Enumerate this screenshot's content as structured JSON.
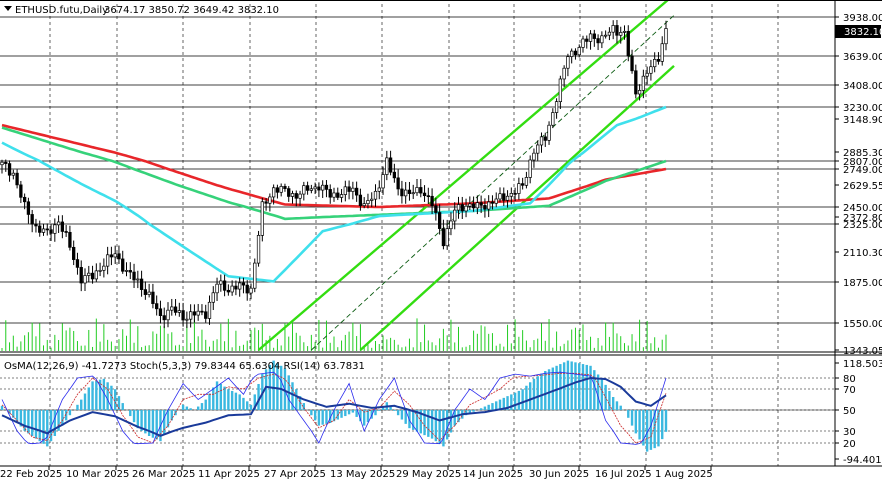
{
  "header": {
    "instrument": "ETHUSD.futu,Daily",
    "ohlc": "3674.17 3850.72 3649.42 3832.10"
  },
  "indicator_header": "OsMA(12,26,9) -41.7273  Stoch(5,3,3) 79.8344 65.6304  RSI(14) 63.7831",
  "current_price_label": "3832.10",
  "colors": {
    "candle": "#000000",
    "ma_red": "#e8262a",
    "ma_green": "#36d27a",
    "ma_cyan": "#3fe0ec",
    "channel": "#33dd11",
    "volume": "#22cc22",
    "osma": "#3ab8e0",
    "rsi": "#1a3a9a",
    "stoch_main": "#2a2aee",
    "stoch_signal": "#cc2a2a"
  },
  "chart_data": [
    {
      "type": "candlestick",
      "title": "ETHUSD.futu,Daily",
      "y_axis_labels": [
        "3938.00",
        "3639.00",
        "3408.00",
        "3230.00",
        "3148.90",
        "2885.30",
        "2807.00",
        "2749.00",
        "2629.55",
        "2450.00",
        "2372.80",
        "2325.00",
        "2110.30",
        "1875.00",
        "1550.00",
        "1343.05"
      ],
      "x_axis_labels": [
        "22 Feb 2025",
        "10 Mar 2025",
        "26 Mar 2025",
        "11 Apr 2025",
        "27 Apr 2025",
        "13 May 2025",
        "29 May 2025",
        "14 Jun 2025",
        "30 Jun 2025",
        "16 Jul 2025",
        "1 Aug 2025"
      ],
      "ylim": [
        1343.05,
        4080
      ],
      "close_path": [
        [
          0,
          2780
        ],
        [
          3,
          2720
        ],
        [
          6,
          2450
        ],
        [
          9,
          2300
        ],
        [
          12,
          2250
        ],
        [
          15,
          2350
        ],
        [
          18,
          2150
        ],
        [
          21,
          1900
        ],
        [
          24,
          1920
        ],
        [
          27,
          2020
        ],
        [
          30,
          2100
        ],
        [
          33,
          1950
        ],
        [
          36,
          1880
        ],
        [
          39,
          1760
        ],
        [
          42,
          1600
        ],
        [
          45,
          1660
        ],
        [
          48,
          1600
        ],
        [
          51,
          1620
        ],
        [
          54,
          1630
        ],
        [
          57,
          1860
        ],
        [
          60,
          1820
        ],
        [
          63,
          1840
        ],
        [
          66,
          1820
        ],
        [
          69,
          2450
        ],
        [
          72,
          2600
        ],
        [
          75,
          2580
        ],
        [
          78,
          2540
        ],
        [
          81,
          2600
        ],
        [
          84,
          2620
        ],
        [
          87,
          2550
        ],
        [
          90,
          2560
        ],
        [
          93,
          2600
        ],
        [
          96,
          2450
        ],
        [
          99,
          2560
        ],
        [
          102,
          2800
        ],
        [
          105,
          2600
        ],
        [
          108,
          2550
        ],
        [
          111,
          2600
        ],
        [
          114,
          2470
        ],
        [
          117,
          2200
        ],
        [
          120,
          2420
        ],
        [
          123,
          2470
        ],
        [
          126,
          2450
        ],
        [
          129,
          2480
        ],
        [
          132,
          2520
        ],
        [
          135,
          2560
        ],
        [
          138,
          2620
        ],
        [
          141,
          2900
        ],
        [
          144,
          3000
        ],
        [
          147,
          3300
        ],
        [
          150,
          3650
        ],
        [
          153,
          3700
        ],
        [
          156,
          3800
        ],
        [
          159,
          3760
        ],
        [
          162,
          3860
        ],
        [
          165,
          3800
        ],
        [
          168,
          3350
        ],
        [
          171,
          3500
        ],
        [
          174,
          3639
        ],
        [
          176,
          3832
        ]
      ],
      "series": [
        {
          "name": "",
          "color": "red",
          "values": [
            [
              0,
              3100
            ],
            [
              30,
              2880
            ],
            [
              60,
              2600
            ],
            [
              75,
              2470
            ],
            [
              100,
              2450
            ],
            [
              125,
              2480
            ],
            [
              145,
              2520
            ],
            [
              160,
              2670
            ],
            [
              176,
              2749
            ]
          ]
        },
        {
          "name": "",
          "color": "green",
          "values": [
            [
              0,
              3080
            ],
            [
              30,
              2800
            ],
            [
              60,
              2490
            ],
            [
              75,
              2360
            ],
            [
              100,
              2390
            ],
            [
              125,
              2420
            ],
            [
              145,
              2460
            ],
            [
              160,
              2660
            ],
            [
              176,
              2807
            ]
          ]
        },
        {
          "name": "",
          "color": "cyan",
          "values": [
            [
              0,
              2960
            ],
            [
              30,
              2500
            ],
            [
              60,
              1920
            ],
            [
              72,
              1880
            ],
            [
              85,
              2270
            ],
            [
              100,
              2380
            ],
            [
              125,
              2420
            ],
            [
              140,
              2480
            ],
            [
              150,
              2780
            ],
            [
              163,
              3100
            ],
            [
              176,
              3230
            ]
          ]
        }
      ],
      "channel_lines": [
        {
          "name": "",
          "values": [
            [
              68,
              1343.05
            ],
            [
              176,
              4100
            ]
          ]
        },
        {
          "name": "",
          "values": [
            [
              95,
              1343.05
            ],
            [
              176,
              3560
            ]
          ]
        },
        {
          "name": "",
          "values": [
            [
              82,
              1343.05
            ],
            [
              176,
              3950
            ]
          ]
        }
      ],
      "horizontal_levels": [
        3938.0,
        3639.0,
        3408.0,
        3230.0,
        2807.0,
        2749.0,
        2450.0,
        2325.0,
        1875.0,
        1550.0
      ],
      "grid": true
    },
    {
      "type": "oscillator",
      "title": "OsMA(12,26,9) -41.7273  Stoch(5,3,3) 79.8344 65.6304  RSI(14) 63.7831",
      "y_axis_labels": [
        "118.5032",
        "80",
        "70",
        "50",
        "30",
        "20",
        "-94.4019"
      ],
      "ylim": [
        -94.4019,
        118.5032
      ],
      "levels": [
        80,
        70,
        50,
        30,
        20
      ],
      "osma": [
        [
          0,
          8
        ],
        [
          3,
          -15
        ],
        [
          6,
          -40
        ],
        [
          9,
          -55
        ],
        [
          12,
          -70
        ],
        [
          15,
          -40
        ],
        [
          18,
          -10
        ],
        [
          21,
          20
        ],
        [
          24,
          55
        ],
        [
          27,
          60
        ],
        [
          30,
          40
        ],
        [
          33,
          0
        ],
        [
          36,
          -35
        ],
        [
          39,
          -50
        ],
        [
          42,
          -60
        ],
        [
          45,
          -20
        ],
        [
          48,
          10
        ],
        [
          51,
          0
        ],
        [
          54,
          20
        ],
        [
          57,
          55
        ],
        [
          60,
          40
        ],
        [
          63,
          30
        ],
        [
          66,
          10
        ],
        [
          69,
          70
        ],
        [
          72,
          95
        ],
        [
          75,
          80
        ],
        [
          78,
          40
        ],
        [
          81,
          0
        ],
        [
          84,
          -30
        ],
        [
          87,
          -25
        ],
        [
          90,
          -15
        ],
        [
          93,
          -5
        ],
        [
          96,
          -30
        ],
        [
          99,
          -10
        ],
        [
          102,
          15
        ],
        [
          105,
          -10
        ],
        [
          108,
          -35
        ],
        [
          111,
          -45
        ],
        [
          114,
          -55
        ],
        [
          117,
          -70
        ],
        [
          120,
          -30
        ],
        [
          123,
          -10
        ],
        [
          126,
          0
        ],
        [
          129,
          10
        ],
        [
          132,
          20
        ],
        [
          135,
          30
        ],
        [
          138,
          40
        ],
        [
          141,
          60
        ],
        [
          144,
          75
        ],
        [
          147,
          85
        ],
        [
          150,
          95
        ],
        [
          153,
          90
        ],
        [
          156,
          85
        ],
        [
          159,
          60
        ],
        [
          162,
          25
        ],
        [
          165,
          0
        ],
        [
          168,
          -45
        ],
        [
          171,
          -80
        ],
        [
          174,
          -70
        ],
        [
          176,
          -42
        ]
      ],
      "rsi": [
        [
          0,
          45
        ],
        [
          6,
          35
        ],
        [
          12,
          28
        ],
        [
          18,
          40
        ],
        [
          24,
          48
        ],
        [
          30,
          44
        ],
        [
          36,
          34
        ],
        [
          42,
          26
        ],
        [
          48,
          33
        ],
        [
          54,
          38
        ],
        [
          60,
          45
        ],
        [
          66,
          46
        ],
        [
          70,
          72
        ],
        [
          74,
          70
        ],
        [
          80,
          60
        ],
        [
          86,
          53
        ],
        [
          92,
          56
        ],
        [
          98,
          52
        ],
        [
          104,
          54
        ],
        [
          110,
          48
        ],
        [
          116,
          40
        ],
        [
          122,
          46
        ],
        [
          128,
          48
        ],
        [
          134,
          52
        ],
        [
          140,
          60
        ],
        [
          146,
          68
        ],
        [
          152,
          76
        ],
        [
          156,
          80
        ],
        [
          160,
          79
        ],
        [
          164,
          72
        ],
        [
          168,
          58
        ],
        [
          172,
          54
        ],
        [
          176,
          64
        ]
      ],
      "stoch_main": [
        [
          0,
          60
        ],
        [
          4,
          30
        ],
        [
          8,
          15
        ],
        [
          12,
          25
        ],
        [
          16,
          60
        ],
        [
          20,
          80
        ],
        [
          24,
          85
        ],
        [
          28,
          60
        ],
        [
          32,
          30
        ],
        [
          36,
          15
        ],
        [
          40,
          20
        ],
        [
          44,
          50
        ],
        [
          48,
          75
        ],
        [
          52,
          60
        ],
        [
          56,
          70
        ],
        [
          60,
          80
        ],
        [
          64,
          65
        ],
        [
          68,
          90
        ],
        [
          72,
          95
        ],
        [
          76,
          60
        ],
        [
          80,
          40
        ],
        [
          84,
          20
        ],
        [
          88,
          50
        ],
        [
          92,
          75
        ],
        [
          96,
          30
        ],
        [
          100,
          60
        ],
        [
          104,
          80
        ],
        [
          108,
          40
        ],
        [
          112,
          20
        ],
        [
          116,
          15
        ],
        [
          120,
          50
        ],
        [
          124,
          70
        ],
        [
          128,
          60
        ],
        [
          132,
          80
        ],
        [
          136,
          90
        ],
        [
          140,
          85
        ],
        [
          144,
          92
        ],
        [
          148,
          95
        ],
        [
          152,
          90
        ],
        [
          156,
          85
        ],
        [
          160,
          40
        ],
        [
          164,
          20
        ],
        [
          168,
          10
        ],
        [
          172,
          35
        ],
        [
          176,
          80
        ]
      ],
      "stoch_signal": [
        [
          0,
          55
        ],
        [
          4,
          40
        ],
        [
          8,
          25
        ],
        [
          12,
          22
        ],
        [
          16,
          40
        ],
        [
          20,
          65
        ],
        [
          24,
          80
        ],
        [
          28,
          70
        ],
        [
          32,
          45
        ],
        [
          36,
          25
        ],
        [
          40,
          20
        ],
        [
          44,
          35
        ],
        [
          48,
          60
        ],
        [
          52,
          65
        ],
        [
          56,
          65
        ],
        [
          60,
          72
        ],
        [
          64,
          70
        ],
        [
          68,
          80
        ],
        [
          72,
          90
        ],
        [
          76,
          75
        ],
        [
          80,
          52
        ],
        [
          84,
          33
        ],
        [
          88,
          40
        ],
        [
          92,
          60
        ],
        [
          96,
          48
        ],
        [
          100,
          52
        ],
        [
          104,
          68
        ],
        [
          108,
          55
        ],
        [
          112,
          35
        ],
        [
          116,
          22
        ],
        [
          120,
          35
        ],
        [
          124,
          55
        ],
        [
          128,
          62
        ],
        [
          132,
          70
        ],
        [
          136,
          82
        ],
        [
          140,
          85
        ],
        [
          144,
          88
        ],
        [
          148,
          92
        ],
        [
          152,
          92
        ],
        [
          156,
          88
        ],
        [
          160,
          62
        ],
        [
          164,
          35
        ],
        [
          168,
          20
        ],
        [
          172,
          25
        ],
        [
          176,
          66
        ]
      ]
    }
  ]
}
